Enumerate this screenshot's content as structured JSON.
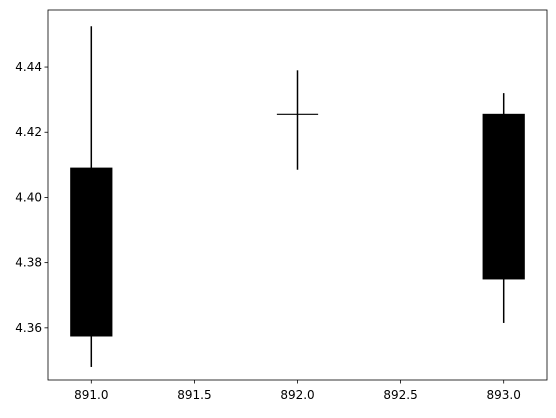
{
  "chart_data": {
    "type": "candlestick",
    "title": "",
    "xlabel": "",
    "ylabel": "",
    "xlim": [
      890.79,
      893.21
    ],
    "ylim": [
      4.344,
      4.4575
    ],
    "xticks": [
      891.0,
      891.5,
      892.0,
      892.5,
      893.0
    ],
    "xtick_labels": [
      "891.0",
      "891.5",
      "892.0",
      "892.5",
      "893.0"
    ],
    "yticks": [
      4.36,
      4.38,
      4.4,
      4.42,
      4.44
    ],
    "ytick_labels": [
      "4.36",
      "4.38",
      "4.40",
      "4.42",
      "4.44"
    ],
    "grid": false,
    "candles": [
      {
        "x": 891.0,
        "open": 4.409,
        "close": 4.3575,
        "high": 4.4525,
        "low": 4.348
      },
      {
        "x": 892.0,
        "open": 4.4255,
        "close": 4.4255,
        "high": 4.439,
        "low": 4.4085
      },
      {
        "x": 893.0,
        "open": 4.4255,
        "close": 4.375,
        "high": 4.432,
        "low": 4.3615
      }
    ],
    "colors": {
      "body": "#000000",
      "wick": "#000000",
      "axes": "#000000",
      "background": "#ffffff"
    }
  }
}
